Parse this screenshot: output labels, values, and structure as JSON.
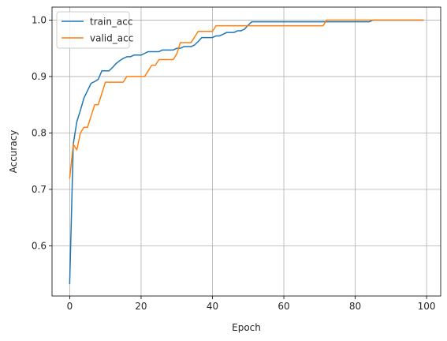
{
  "chart_data": {
    "type": "line",
    "title": "",
    "xlabel": "Epoch",
    "ylabel": "Accuracy",
    "xlim": [
      -4.95,
      103.95
    ],
    "ylim": [
      0.511,
      1.023
    ],
    "xticks": [
      0,
      20,
      40,
      60,
      80,
      100
    ],
    "yticks": [
      0.6,
      0.7,
      0.8,
      0.9,
      1.0
    ],
    "xtick_labels": [
      "0",
      "20",
      "40",
      "60",
      "80",
      "100"
    ],
    "ytick_labels": [
      "0.6",
      "0.7",
      "0.8",
      "0.9",
      "1.0"
    ],
    "grid": true,
    "legend": "top-left",
    "series": [
      {
        "name": "train_acc",
        "color": "#1f77b4",
        "x": [
          0,
          1,
          2,
          3,
          4,
          5,
          6,
          7,
          8,
          9,
          10,
          11,
          12,
          13,
          14,
          15,
          16,
          17,
          18,
          19,
          20,
          21,
          22,
          23,
          24,
          25,
          26,
          27,
          28,
          29,
          30,
          31,
          32,
          33,
          34,
          35,
          36,
          37,
          38,
          39,
          40,
          41,
          42,
          43,
          44,
          45,
          46,
          47,
          48,
          49,
          50,
          51,
          52,
          53,
          54,
          55,
          56,
          57,
          58,
          59,
          60,
          61,
          62,
          63,
          64,
          65,
          66,
          67,
          68,
          69,
          70,
          71,
          72,
          73,
          74,
          75,
          76,
          77,
          78,
          79,
          80,
          81,
          82,
          83,
          84,
          85,
          86,
          87,
          88,
          89,
          90,
          91,
          92,
          93,
          94,
          95,
          96,
          97,
          98,
          99
        ],
        "y": [
          0.533,
          0.78,
          0.82,
          0.84,
          0.862,
          0.875,
          0.888,
          0.891,
          0.895,
          0.91,
          0.91,
          0.91,
          0.916,
          0.923,
          0.928,
          0.932,
          0.935,
          0.935,
          0.938,
          0.938,
          0.938,
          0.941,
          0.944,
          0.944,
          0.944,
          0.944,
          0.947,
          0.947,
          0.947,
          0.947,
          0.95,
          0.95,
          0.953,
          0.953,
          0.953,
          0.956,
          0.962,
          0.969,
          0.969,
          0.969,
          0.969,
          0.972,
          0.972,
          0.975,
          0.978,
          0.978,
          0.978,
          0.981,
          0.981,
          0.984,
          0.991,
          0.997,
          0.997,
          0.997,
          0.997,
          0.997,
          0.997,
          0.997,
          0.997,
          0.997,
          0.997,
          0.997,
          0.997,
          0.997,
          0.997,
          0.997,
          0.997,
          0.997,
          0.997,
          0.997,
          0.997,
          0.997,
          0.997,
          0.997,
          0.997,
          0.997,
          0.997,
          0.997,
          0.997,
          0.997,
          0.997,
          0.997,
          0.997,
          0.997,
          0.997,
          1.0,
          1.0,
          1.0,
          1.0,
          1.0,
          1.0,
          1.0,
          1.0,
          1.0,
          1.0,
          1.0,
          1.0,
          1.0,
          1.0,
          1.0
        ]
      },
      {
        "name": "valid_acc",
        "color": "#ff7f0e",
        "x": [
          0,
          1,
          2,
          3,
          4,
          5,
          6,
          7,
          8,
          9,
          10,
          11,
          12,
          13,
          14,
          15,
          16,
          17,
          18,
          19,
          20,
          21,
          22,
          23,
          24,
          25,
          26,
          27,
          28,
          29,
          30,
          31,
          32,
          33,
          34,
          35,
          36,
          37,
          38,
          39,
          40,
          41,
          42,
          43,
          44,
          45,
          46,
          47,
          48,
          49,
          50,
          51,
          52,
          53,
          54,
          55,
          56,
          57,
          58,
          59,
          60,
          61,
          62,
          63,
          64,
          65,
          66,
          67,
          68,
          69,
          70,
          71,
          72,
          73,
          74,
          75,
          76,
          77,
          78,
          79,
          80,
          81,
          82,
          83,
          84,
          85,
          86,
          87,
          88,
          89,
          90,
          91,
          92,
          93,
          94,
          95,
          96,
          97,
          98,
          99
        ],
        "y": [
          0.72,
          0.78,
          0.77,
          0.8,
          0.81,
          0.81,
          0.83,
          0.85,
          0.85,
          0.87,
          0.89,
          0.89,
          0.89,
          0.89,
          0.89,
          0.89,
          0.9,
          0.9,
          0.9,
          0.9,
          0.9,
          0.9,
          0.91,
          0.92,
          0.92,
          0.93,
          0.93,
          0.93,
          0.93,
          0.93,
          0.94,
          0.96,
          0.96,
          0.96,
          0.96,
          0.97,
          0.98,
          0.98,
          0.98,
          0.98,
          0.98,
          0.99,
          0.99,
          0.99,
          0.99,
          0.99,
          0.99,
          0.99,
          0.99,
          0.99,
          0.99,
          0.99,
          0.99,
          0.99,
          0.99,
          0.99,
          0.99,
          0.99,
          0.99,
          0.99,
          0.99,
          0.99,
          0.99,
          0.99,
          0.99,
          0.99,
          0.99,
          0.99,
          0.99,
          0.99,
          0.99,
          0.99,
          1.0,
          1.0,
          1.0,
          1.0,
          1.0,
          1.0,
          1.0,
          1.0,
          1.0,
          1.0,
          1.0,
          1.0,
          1.0,
          1.0,
          1.0,
          1.0,
          1.0,
          1.0,
          1.0,
          1.0,
          1.0,
          1.0,
          1.0,
          1.0,
          1.0,
          1.0,
          1.0,
          1.0
        ]
      }
    ]
  }
}
